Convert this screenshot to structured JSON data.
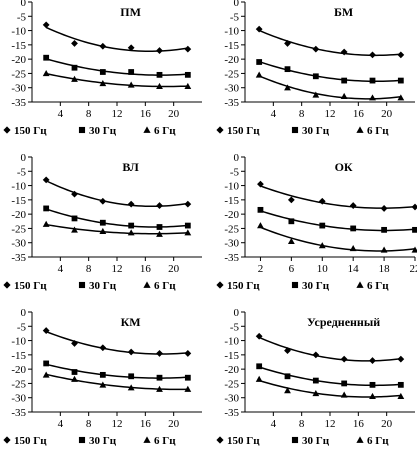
{
  "chart_data": [
    {
      "type": "line",
      "title": "ПМ",
      "xlabel": "",
      "ylabel": "",
      "xlim": [
        0,
        24
      ],
      "ylim": [
        -35,
        0
      ],
      "xticks": [
        4,
        8,
        12,
        16,
        20
      ],
      "yticks": [
        0,
        -5,
        -10,
        -15,
        -20,
        -25,
        -30,
        -35
      ],
      "grid": false,
      "legend_position": "bottom",
      "series": [
        {
          "name": "150 Гц",
          "marker": "diamond",
          "x": [
            2,
            6,
            10,
            14,
            18,
            22
          ],
          "y": [
            -8,
            -14.5,
            -15.5,
            -16,
            -17,
            -16.5
          ]
        },
        {
          "name": "30 Гц",
          "marker": "square",
          "x": [
            2,
            6,
            10,
            14,
            18,
            22
          ],
          "y": [
            -19.5,
            -23,
            -24.5,
            -24.5,
            -25.5,
            -25.5
          ]
        },
        {
          "name": "6 Гц",
          "marker": "triangle",
          "x": [
            2,
            6,
            10,
            14,
            18,
            22
          ],
          "y": [
            -25,
            -27,
            -28.5,
            -29,
            -29.5,
            -29.5
          ]
        }
      ]
    },
    {
      "type": "line",
      "title": "БМ",
      "xlabel": "",
      "ylabel": "",
      "xlim": [
        0,
        24
      ],
      "ylim": [
        -35,
        0
      ],
      "xticks": [
        4,
        8,
        12,
        16,
        20
      ],
      "yticks": [
        0,
        -5,
        -10,
        -15,
        -20,
        -25,
        -30,
        -35
      ],
      "grid": false,
      "legend_position": "bottom",
      "series": [
        {
          "name": "150 Гц",
          "marker": "diamond",
          "x": [
            2,
            6,
            10,
            14,
            18,
            22
          ],
          "y": [
            -9.5,
            -14.5,
            -16.5,
            -17.5,
            -18.5,
            -18.5
          ]
        },
        {
          "name": "30 Гц",
          "marker": "square",
          "x": [
            2,
            6,
            10,
            14,
            18,
            22
          ],
          "y": [
            -21,
            -23.5,
            -26,
            -27.5,
            -27.5,
            -27.5
          ]
        },
        {
          "name": "6 Гц",
          "marker": "triangle",
          "x": [
            2,
            6,
            10,
            14,
            18,
            22
          ],
          "y": [
            -25.5,
            -30,
            -32.5,
            -33,
            -33.5,
            -33.5
          ]
        }
      ]
    },
    {
      "type": "line",
      "title": "ВЛ",
      "xlabel": "",
      "ylabel": "",
      "xlim": [
        0,
        24
      ],
      "ylim": [
        -35,
        0
      ],
      "xticks": [
        4,
        8,
        12,
        16,
        20
      ],
      "yticks": [
        0,
        -5,
        -10,
        -15,
        -20,
        -25,
        -30,
        -35
      ],
      "grid": false,
      "legend_position": "bottom",
      "series": [
        {
          "name": "150 Гц",
          "marker": "diamond",
          "x": [
            2,
            6,
            10,
            14,
            18,
            22
          ],
          "y": [
            -8,
            -13,
            -15.5,
            -16.5,
            -17,
            -16.5
          ]
        },
        {
          "name": "30 Гц",
          "marker": "square",
          "x": [
            2,
            6,
            10,
            14,
            18,
            22
          ],
          "y": [
            -18,
            -21.5,
            -23,
            -24,
            -24.5,
            -24
          ]
        },
        {
          "name": "6 Гц",
          "marker": "triangle",
          "x": [
            2,
            6,
            10,
            14,
            18,
            22
          ],
          "y": [
            -23.5,
            -25.5,
            -26,
            -26.5,
            -27,
            -26.5
          ]
        }
      ]
    },
    {
      "type": "line",
      "title": "ОК",
      "xlabel": "",
      "ylabel": "",
      "xlim": [
        0,
        22
      ],
      "ylim": [
        -35,
        0
      ],
      "xticks": [
        2,
        6,
        10,
        14,
        18,
        22
      ],
      "yticks": [
        0,
        -5,
        -10,
        -15,
        -20,
        -25,
        -30,
        -35
      ],
      "grid": false,
      "legend_position": "bottom",
      "series": [
        {
          "name": "150 Гц",
          "marker": "diamond",
          "x": [
            2,
            6,
            10,
            14,
            18,
            22
          ],
          "y": [
            -9.5,
            -15,
            -15.5,
            -17,
            -18,
            -17.5
          ]
        },
        {
          "name": "30 Гц",
          "marker": "square",
          "x": [
            2,
            6,
            10,
            14,
            18,
            22
          ],
          "y": [
            -18.5,
            -22.5,
            -24,
            -25,
            -25.5,
            -25.5
          ]
        },
        {
          "name": "6 Гц",
          "marker": "triangle",
          "x": [
            2,
            6,
            10,
            14,
            18,
            22
          ],
          "y": [
            -24,
            -29.5,
            -31,
            -32,
            -32.5,
            -32.5
          ]
        }
      ]
    },
    {
      "type": "line",
      "title": "КМ",
      "xlabel": "",
      "ylabel": "",
      "xlim": [
        0,
        24
      ],
      "ylim": [
        -35,
        0
      ],
      "xticks": [
        4,
        8,
        12,
        16,
        20
      ],
      "yticks": [
        0,
        -5,
        -10,
        -15,
        -20,
        -25,
        -30,
        -35
      ],
      "grid": false,
      "legend_position": "bottom",
      "series": [
        {
          "name": "150 Гц",
          "marker": "diamond",
          "x": [
            2,
            6,
            10,
            14,
            18,
            22
          ],
          "y": [
            -6.5,
            -11,
            -12.5,
            -14,
            -14.5,
            -14.5
          ]
        },
        {
          "name": "30 Гц",
          "marker": "square",
          "x": [
            2,
            6,
            10,
            14,
            18,
            22
          ],
          "y": [
            -18,
            -21,
            -22,
            -22.5,
            -23,
            -23
          ]
        },
        {
          "name": "6 Гц",
          "marker": "triangle",
          "x": [
            2,
            6,
            10,
            14,
            18,
            22
          ],
          "y": [
            -22,
            -23.5,
            -25.5,
            -26.5,
            -27,
            -27
          ]
        }
      ]
    },
    {
      "type": "line",
      "title": "Усредненный",
      "xlabel": "",
      "ylabel": "",
      "xlim": [
        0,
        24
      ],
      "ylim": [
        -35,
        0
      ],
      "xticks": [
        4,
        8,
        12,
        16,
        20
      ],
      "yticks": [
        0,
        -5,
        -10,
        -15,
        -20,
        -25,
        -30,
        -35
      ],
      "grid": false,
      "legend_position": "bottom",
      "series": [
        {
          "name": "150 Гц",
          "marker": "diamond",
          "x": [
            2,
            6,
            10,
            14,
            18,
            22
          ],
          "y": [
            -8.5,
            -13.5,
            -15,
            -16.5,
            -17,
            -16.5
          ]
        },
        {
          "name": "30 Гц",
          "marker": "square",
          "x": [
            2,
            6,
            10,
            14,
            18,
            22
          ],
          "y": [
            -19,
            -22.5,
            -24,
            -25,
            -25.5,
            -25.5
          ]
        },
        {
          "name": "6 Гц",
          "marker": "triangle",
          "x": [
            2,
            6,
            10,
            14,
            18,
            22
          ],
          "y": [
            -23.5,
            -27.5,
            -28.5,
            -29,
            -29.5,
            -29.5
          ]
        }
      ]
    }
  ]
}
